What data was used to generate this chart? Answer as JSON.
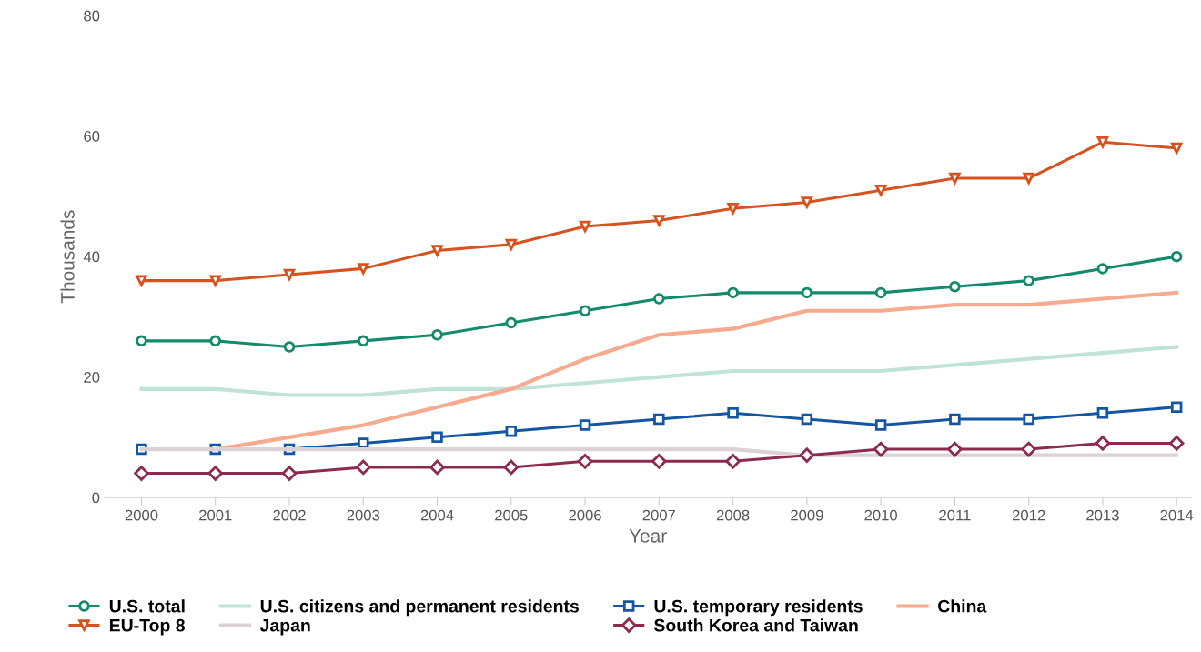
{
  "chart_data": {
    "type": "line",
    "xlabel": "Year",
    "ylabel": "Thousands",
    "categories": [
      "2000",
      "2001",
      "2002",
      "2003",
      "2004",
      "2005",
      "2006",
      "2007",
      "2008",
      "2009",
      "2010",
      "2011",
      "2012",
      "2013",
      "2014"
    ],
    "ylim": [
      0,
      80
    ],
    "yticks": [
      0,
      20,
      40,
      60,
      80
    ],
    "grid": false,
    "legend": "bottom",
    "line_style": "solid",
    "series": [
      {
        "name": "U.S. total",
        "color": "#138a6c",
        "marker": "circle",
        "values": [
          26,
          26,
          25,
          26,
          27,
          29,
          31,
          33,
          34,
          34,
          34,
          35,
          36,
          38,
          40
        ]
      },
      {
        "name": "U.S. citizens and permanent residents",
        "color": "#bfe3d8",
        "marker": "none",
        "values": [
          18,
          18,
          17,
          17,
          18,
          18,
          19,
          20,
          21,
          21,
          21,
          22,
          23,
          24,
          25
        ]
      },
      {
        "name": "U.S. temporary residents",
        "color": "#1556a3",
        "marker": "square",
        "values": [
          8,
          8,
          8,
          9,
          10,
          11,
          12,
          13,
          14,
          13,
          12,
          13,
          13,
          14,
          15
        ]
      },
      {
        "name": "China",
        "color": "#f6ab90",
        "marker": "none",
        "values": [
          null,
          8,
          10,
          12,
          15,
          18,
          23,
          27,
          28,
          31,
          31,
          32,
          32,
          33,
          34
        ]
      },
      {
        "name": "EU-Top 8",
        "color": "#d6521f",
        "marker": "triangle",
        "values": [
          36,
          36,
          37,
          38,
          41,
          42,
          45,
          46,
          48,
          49,
          51,
          53,
          53,
          59,
          58
        ]
      },
      {
        "name": "Japan",
        "color": "#dcd2d6",
        "marker": "none",
        "values": [
          8,
          8,
          8,
          8,
          8,
          8,
          8,
          8,
          8,
          7,
          7,
          7,
          7,
          7,
          7
        ]
      },
      {
        "name": "South Korea and Taiwan",
        "color": "#8c2a50",
        "marker": "diamond",
        "values": [
          4,
          4,
          4,
          5,
          5,
          5,
          6,
          6,
          6,
          7,
          8,
          8,
          8,
          9,
          9
        ]
      }
    ]
  }
}
